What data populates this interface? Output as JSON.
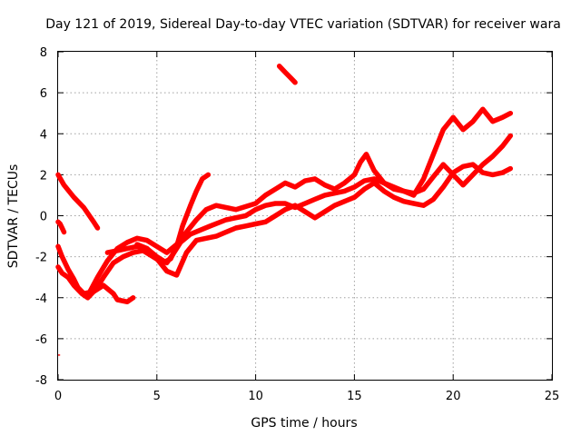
{
  "chart_data": {
    "type": "scatter",
    "title": "Day 121 of 2019, Sidereal Day-to-day VTEC variation (SDTVAR) for receiver wara",
    "xlabel": "GPS time / hours",
    "ylabel": "SDTVAR / TECUs",
    "xlim": [
      0,
      25
    ],
    "ylim": [
      -8,
      8
    ],
    "xticks": [
      0,
      5,
      10,
      15,
      20,
      25
    ],
    "yticks": [
      -8,
      -6,
      -4,
      -2,
      0,
      2,
      4,
      6,
      8
    ],
    "grid": true,
    "marker": "plus",
    "series_color": "#ff0000",
    "series": [
      {
        "x": [
          0.0,
          0.3,
          0.8,
          1.3,
          1.8,
          2.0
        ],
        "y": [
          2.0,
          1.5,
          0.9,
          0.4,
          -0.3,
          -0.6
        ]
      },
      {
        "x": [
          0.0,
          0.2,
          0.5,
          0.8,
          1.0,
          1.3,
          1.8,
          2.3,
          2.8,
          3.0,
          3.5,
          3.8
        ],
        "y": [
          -1.5,
          -2.0,
          -2.6,
          -3.1,
          -3.5,
          -3.8,
          -3.7,
          -3.4,
          -3.8,
          -4.1,
          -4.2,
          -4.0
        ]
      },
      {
        "x": [
          0.0,
          0.2,
          0.5,
          0.8,
          1.2,
          1.5,
          1.9,
          2.3,
          2.8,
          3.3,
          3.8,
          4.3,
          4.8,
          5.3,
          5.7,
          6.0,
          6.3,
          6.7,
          7.0,
          7.3,
          7.6
        ],
        "y": [
          -2.5,
          -2.8,
          -3.0,
          -3.4,
          -3.8,
          -4.0,
          -3.6,
          -3.0,
          -2.3,
          -2.0,
          -1.8,
          -1.7,
          -2.0,
          -2.3,
          -2.1,
          -1.5,
          -0.5,
          0.5,
          1.2,
          1.8,
          2.0
        ]
      },
      {
        "x": [
          1.5,
          2.0,
          2.5,
          3.0,
          3.5,
          4.0,
          4.5,
          5.0,
          5.5,
          6.0,
          6.5,
          7.0,
          7.5,
          8.0,
          9.0,
          10.0,
          10.5,
          11.0,
          11.5,
          12.0,
          12.5,
          13.0,
          13.5,
          14.0,
          14.5,
          15.0,
          15.3,
          15.6,
          16.0,
          16.5,
          17.0,
          17.5,
          18.0,
          18.5,
          19.0,
          19.5,
          20.0,
          20.5,
          21.0,
          21.5,
          22.0,
          22.5,
          22.9
        ],
        "y": [
          -3.9,
          -3.0,
          -2.2,
          -1.6,
          -1.3,
          -1.1,
          -1.2,
          -1.5,
          -1.8,
          -1.4,
          -0.8,
          -0.2,
          0.3,
          0.5,
          0.3,
          0.6,
          1.0,
          1.3,
          1.6,
          1.4,
          1.7,
          1.8,
          1.5,
          1.3,
          1.6,
          2.0,
          2.6,
          3.0,
          2.2,
          1.6,
          1.3,
          1.2,
          1.0,
          1.8,
          3.0,
          4.2,
          4.8,
          4.2,
          4.6,
          5.2,
          4.6,
          4.8,
          5.0
        ]
      },
      {
        "x": [
          2.5,
          3.0,
          3.5,
          4.0,
          4.5,
          5.0,
          5.5,
          5.8,
          6.2,
          6.7,
          7.2,
          7.7,
          8.5,
          9.5,
          10.0,
          10.5,
          11.0,
          11.5,
          12.0,
          12.5,
          13.0,
          13.5,
          14.0,
          14.5,
          15.0,
          15.5,
          16.0,
          16.5,
          17.0,
          17.5,
          18.0,
          18.5,
          19.0,
          19.5,
          20.0,
          20.5,
          21.0,
          21.5,
          22.0,
          22.5,
          22.9
        ],
        "y": [
          -1.8,
          -1.7,
          -1.6,
          -1.5,
          -1.6,
          -2.0,
          -2.3,
          -1.9,
          -1.3,
          -0.9,
          -0.7,
          -0.5,
          -0.2,
          0.0,
          0.3,
          0.5,
          0.6,
          0.6,
          0.4,
          0.6,
          0.8,
          1.0,
          1.1,
          1.2,
          1.4,
          1.7,
          1.8,
          1.6,
          1.4,
          1.2,
          1.1,
          1.3,
          1.9,
          2.5,
          2.0,
          1.5,
          2.0,
          2.5,
          2.9,
          3.4,
          3.9
        ]
      },
      {
        "x": [
          4.0,
          4.5,
          5.0,
          5.5,
          6.0,
          6.5,
          7.0,
          7.5,
          8.0,
          8.5,
          9.0,
          9.5,
          10.0,
          10.5,
          11.0,
          11.5,
          12.0,
          12.5,
          13.0,
          13.5,
          14.0,
          14.5,
          15.0,
          15.5,
          16.0,
          16.5,
          17.0,
          17.5,
          18.0,
          18.5,
          19.0,
          19.5,
          20.0,
          20.5,
          21.0,
          21.5,
          22.0,
          22.5,
          22.9
        ],
        "y": [
          -1.4,
          -1.6,
          -2.1,
          -2.7,
          -2.9,
          -1.8,
          -1.2,
          -1.1,
          -1.0,
          -0.8,
          -0.6,
          -0.5,
          -0.4,
          -0.3,
          0.0,
          0.3,
          0.5,
          0.2,
          -0.1,
          0.2,
          0.5,
          0.7,
          0.9,
          1.3,
          1.6,
          1.2,
          0.9,
          0.7,
          0.6,
          0.5,
          0.8,
          1.4,
          2.1,
          2.4,
          2.5,
          2.1,
          2.0,
          2.1,
          2.3
        ]
      },
      {
        "x": [
          11.2,
          11.5,
          11.8,
          12.0
        ],
        "y": [
          7.3,
          7.0,
          6.7,
          6.5
        ]
      },
      {
        "x": [
          0.0,
          0.1,
          0.2,
          0.3
        ],
        "y": [
          -0.3,
          -0.4,
          -0.6,
          -0.8
        ]
      },
      {
        "x": [
          0.0,
          0.1
        ],
        "y": [
          -6.8,
          -6.8
        ]
      }
    ]
  }
}
